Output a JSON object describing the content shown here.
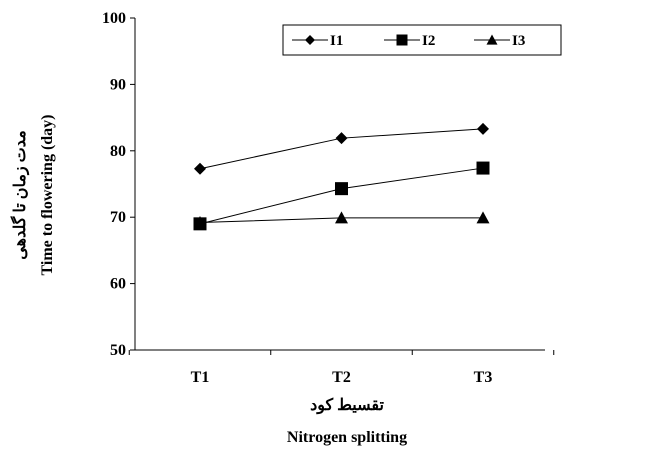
{
  "chart_data": {
    "type": "line",
    "categories": [
      "T1",
      "T2",
      "T3"
    ],
    "series": [
      {
        "name": "I1",
        "marker": "diamond",
        "values": [
          77.3,
          81.9,
          83.3
        ]
      },
      {
        "name": "I2",
        "marker": "square",
        "values": [
          69.0,
          74.3,
          77.4
        ]
      },
      {
        "name": "I3",
        "marker": "triangle",
        "values": [
          69.2,
          69.9,
          69.9
        ]
      }
    ],
    "ylim": [
      50,
      100
    ],
    "yticks": [
      50,
      60,
      70,
      80,
      90,
      100
    ],
    "ylabel": "Time to flowering (day)",
    "ylabel_fa": "مدت زمان تا گلدهی",
    "xlabel": "Nitrogen splitting",
    "xlabel_fa": "تقسیط کود",
    "legend_position": "top",
    "grid": false,
    "colors": {
      "line": "#000000",
      "marker": "#000000",
      "axis": "#000000"
    }
  }
}
